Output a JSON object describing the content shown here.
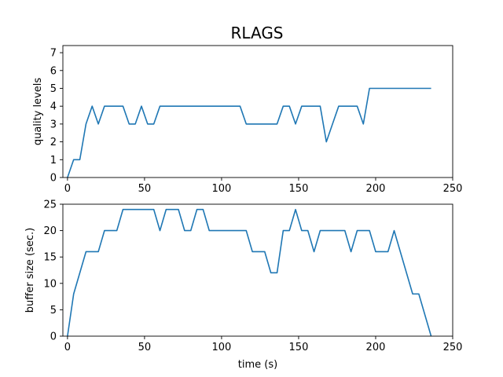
{
  "title": "RLAGS",
  "chart_data": [
    {
      "type": "line",
      "title": "RLAGS",
      "xlabel": "",
      "ylabel": "quality levels",
      "xlim": [
        -3,
        250
      ],
      "ylim": [
        0,
        7.4
      ],
      "xticks": [
        0,
        50,
        100,
        150,
        200,
        250
      ],
      "yticks": [
        0,
        1,
        2,
        3,
        4,
        5,
        6,
        7
      ],
      "grid": false,
      "color": "#1f77b4",
      "series": [
        {
          "x": [
            0,
            4,
            8,
            12,
            16,
            20,
            24,
            28,
            32,
            36,
            40,
            44,
            48,
            52,
            56,
            60,
            64,
            112,
            116,
            120,
            124,
            128,
            132,
            136,
            140,
            144,
            148,
            152,
            156,
            160,
            164,
            168,
            172,
            176,
            180,
            184,
            188,
            192,
            196,
            200,
            236
          ],
          "y": [
            0,
            1,
            1,
            3,
            4,
            3,
            4,
            4,
            4,
            4,
            3,
            3,
            4,
            3,
            3,
            4,
            4,
            4,
            3,
            3,
            3,
            3,
            3,
            3,
            4,
            4,
            3,
            4,
            4,
            4,
            4,
            2,
            3,
            4,
            4,
            4,
            4,
            3,
            5,
            5,
            5
          ]
        }
      ]
    },
    {
      "type": "line",
      "xlabel": "time (s)",
      "ylabel": "buffer size (sec.)",
      "xlim": [
        -3,
        250
      ],
      "ylim": [
        0,
        25
      ],
      "xticks": [
        0,
        50,
        100,
        150,
        200,
        250
      ],
      "yticks": [
        0,
        5,
        10,
        15,
        20,
        25
      ],
      "grid": false,
      "color": "#1f77b4",
      "series": [
        {
          "x": [
            0,
            4,
            12,
            16,
            20,
            24,
            28,
            32,
            36,
            40,
            56,
            60,
            64,
            68,
            72,
            76,
            80,
            84,
            88,
            92,
            116,
            120,
            124,
            128,
            132,
            136,
            140,
            144,
            148,
            152,
            156,
            160,
            164,
            168,
            172,
            176,
            180,
            184,
            188,
            192,
            196,
            200,
            204,
            208,
            212,
            216,
            220,
            224,
            228,
            232,
            236
          ],
          "y": [
            0,
            8,
            16,
            16,
            16,
            20,
            20,
            20,
            24,
            24,
            24,
            20,
            24,
            24,
            24,
            20,
            20,
            24,
            24,
            20,
            20,
            16,
            16,
            16,
            12,
            12,
            20,
            20,
            24,
            20,
            20,
            16,
            20,
            20,
            20,
            20,
            20,
            16,
            20,
            20,
            20,
            16,
            16,
            16,
            20,
            16,
            12,
            8,
            8,
            4,
            0
          ]
        }
      ]
    }
  ]
}
